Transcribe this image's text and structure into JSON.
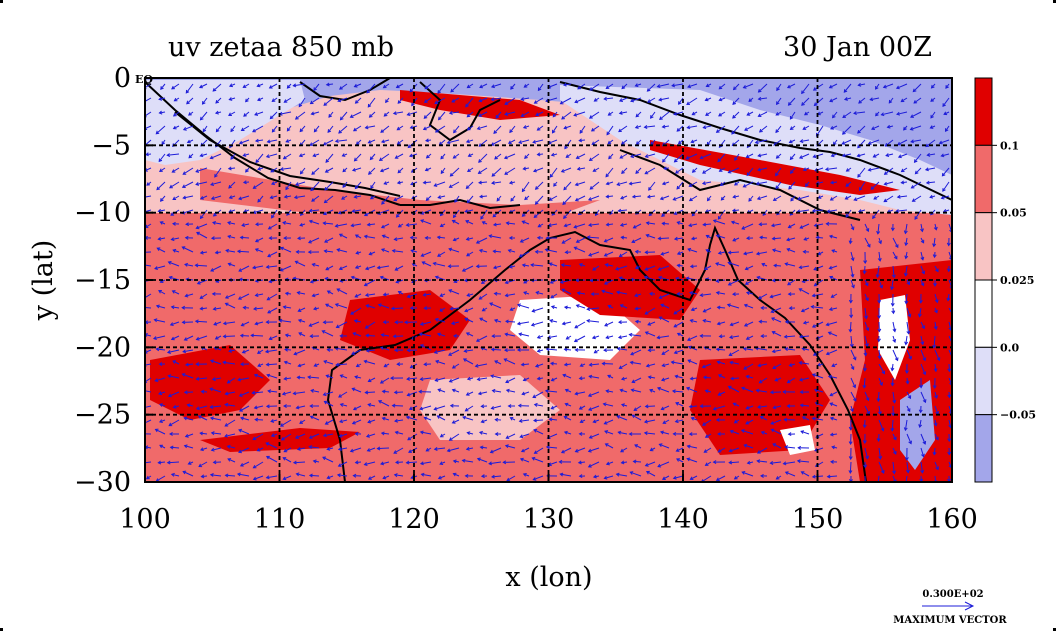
{
  "title": {
    "left": "uv zetaa 850 mb",
    "right": "30 Jan 00Z"
  },
  "axes": {
    "xlabel": "x (lon)",
    "ylabel": "y (lat)",
    "x_ticks": [
      "100",
      "110",
      "120",
      "130",
      "140",
      "150",
      "160"
    ],
    "y_ticks": [
      "0",
      "−5",
      "−10",
      "−15",
      "−20",
      "−25",
      "−30"
    ],
    "y_zero_suffix": "EQ",
    "xlim": [
      100,
      160
    ],
    "ylim": [
      -30,
      0
    ]
  },
  "colorbar": {
    "labels": [
      "0.1",
      "0.05",
      "0.025",
      "0.0",
      "−0.05"
    ],
    "colors": [
      "#e00000",
      "#f06a6a",
      "#f8c4c4",
      "#ffffff",
      "#dedef8",
      "#a3a6ea"
    ]
  },
  "vector_key": {
    "magnitude": "0.300E+02",
    "caption": "MAXIMUM VECTOR"
  },
  "colors": {
    "vector": "#1c1cd8",
    "coast": "#000000",
    "grid": "#000000"
  }
}
